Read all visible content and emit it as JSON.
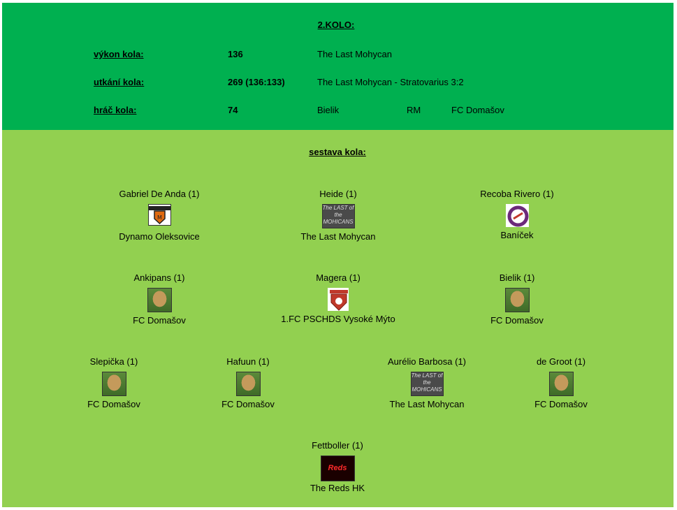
{
  "header": {
    "title": "2.KOLO:",
    "rows": [
      {
        "label": "výkon kola:",
        "value": "136",
        "info": "The Last Mohycan",
        "extra1": "",
        "extra2": ""
      },
      {
        "label": "utkání kola:",
        "value": "269 (136:133)",
        "info": "The Last Mohycan - Stratovarius 3:2",
        "extra1": "",
        "extra2": ""
      },
      {
        "label": "hráč kola:",
        "value": "74",
        "info": "Bielik",
        "extra1": "RM",
        "extra2": "FC Domašov"
      }
    ]
  },
  "lineup": {
    "title": "sestava kola:",
    "players": [
      {
        "name": "Gabriel De Anda (1)",
        "team": "Dynamo Oleksovice",
        "logo": "dynamo-logo-icon"
      },
      {
        "name": "Heide (1)",
        "team": "The Last Mohycan",
        "logo": "mohican-logo-icon"
      },
      {
        "name": "Recoba Rivero (1)",
        "team": "Baníček",
        "logo": "banicek-logo-icon"
      },
      {
        "name": "Ankipans (1)",
        "team": "FC Domašov",
        "logo": "dog-logo-icon"
      },
      {
        "name": "Magera (1)",
        "team": "1.FC PSCHDS Vysoké Mýto",
        "logo": "pschds-logo-icon"
      },
      {
        "name": "Bielik (1)",
        "team": "FC Domašov",
        "logo": "dog-logo-icon"
      },
      {
        "name": "Slepička (1)",
        "team": "FC Domašov",
        "logo": "dog-logo-icon"
      },
      {
        "name": "Hafuun (1)",
        "team": "FC Domašov",
        "logo": "dog-logo-icon"
      },
      {
        "name": "Aurélio Barbosa (1)",
        "team": "The Last Mohycan",
        "logo": "mohican-logo-icon"
      },
      {
        "name": "de Groot (1)",
        "team": "FC Domašov",
        "logo": "dog-logo-icon"
      },
      {
        "name": "Fettboller (1)",
        "team": "The Reds HK",
        "logo": "reds-logo-icon"
      }
    ],
    "logo_text": {
      "mohican": "The LAST of the MOHICANS",
      "reds": "Reds"
    }
  },
  "colors": {
    "header_bg": "#00b050",
    "lineup_bg": "#92d050"
  }
}
